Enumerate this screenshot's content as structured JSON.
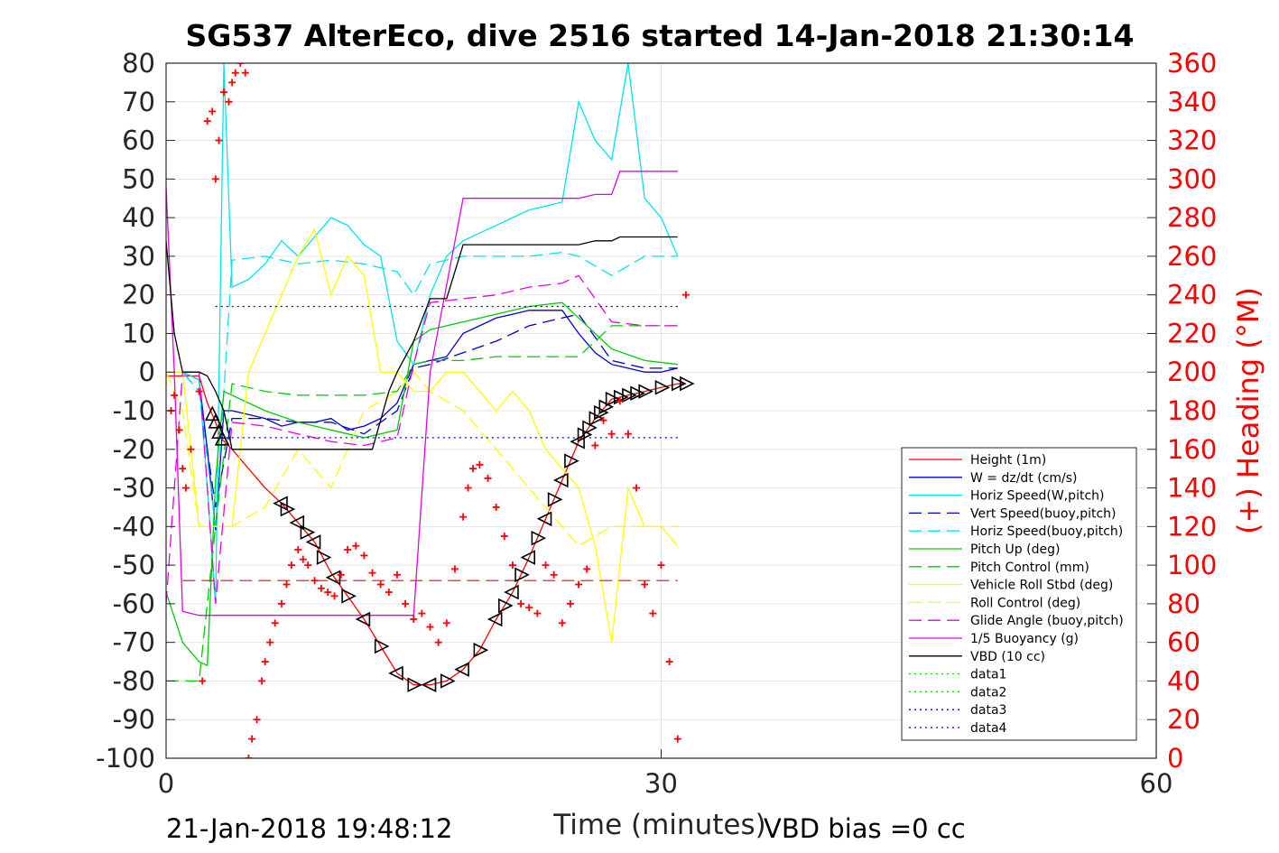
{
  "chart_data": {
    "type": "line",
    "title": "SG537 AlterEco, dive 2516 started 14-Jan-2018 21:30:14",
    "xlabel": "Time (minutes)",
    "ylabel_left": "",
    "ylabel_right": "(+) Heading (°M)",
    "xlim": [
      0,
      60
    ],
    "ylim_left": [
      -100,
      80
    ],
    "ylim_right": [
      0,
      360
    ],
    "x_ticks": [
      "0",
      "30",
      "60"
    ],
    "y_ticks_left": [
      "80",
      "70",
      "60",
      "50",
      "40",
      "30",
      "20",
      "10",
      "0",
      "-10",
      "-20",
      "-30",
      "-40",
      "-50",
      "-60",
      "-70",
      "-80",
      "-90",
      "-100"
    ],
    "y_ticks_right": [
      "360",
      "340",
      "320",
      "300",
      "280",
      "260",
      "240",
      "220",
      "200",
      "180",
      "160",
      "140",
      "120",
      "100",
      "80",
      "60",
      "40",
      "20",
      "0"
    ],
    "grid": true,
    "legend_position": "lower-right",
    "footer_left": "21-Jan-2018 19:48:12",
    "footer_right": "VBD bias =0 cc",
    "series": [
      {
        "name": "Height (1m)",
        "color": "#ff0000",
        "style": "solid",
        "x": [
          0,
          1,
          2,
          2.5,
          3,
          3.3,
          4,
          5,
          6,
          7,
          8,
          9,
          10,
          11,
          12,
          13,
          14,
          15,
          16,
          17,
          18,
          19,
          20,
          21,
          22,
          23,
          24,
          25,
          26,
          27,
          28,
          29,
          30,
          31,
          31.5
        ],
        "y": [
          -1,
          -1,
          -1,
          -8,
          -13,
          -17,
          -20,
          -25,
          -30,
          -34,
          -39,
          -44,
          -52,
          -58,
          -64,
          -71,
          -78,
          -81,
          -81,
          -80,
          -77,
          -72,
          -64,
          -57,
          -48,
          -38,
          -28,
          -18,
          -12,
          -7,
          -6,
          -5,
          -4,
          -3,
          -3
        ]
      },
      {
        "name": "W = dz/dt (cm/s)",
        "color": "#0000cc",
        "style": "solid",
        "x": [
          0,
          1,
          2,
          2.5,
          3,
          3.5,
          4,
          5,
          6,
          7,
          8,
          9,
          10,
          11,
          12,
          13,
          14,
          15,
          16,
          17,
          18,
          19,
          20,
          21,
          22,
          23,
          24,
          25,
          26,
          27,
          28,
          29,
          30,
          31
        ],
        "y": [
          0,
          0,
          -2,
          -20,
          -41,
          -10,
          -10,
          -11,
          -12,
          -14,
          -13,
          -13,
          -12,
          -15,
          -14,
          -12,
          -8,
          2,
          3,
          4,
          10,
          12,
          14,
          15,
          16,
          16,
          16,
          10,
          5,
          2,
          1,
          0,
          0,
          1
        ]
      },
      {
        "name": "Horiz Speed(W,pitch)",
        "color": "#00e5e5",
        "style": "solid",
        "x": [
          0,
          1,
          2,
          2.5,
          3,
          3.5,
          4,
          5,
          6,
          7,
          8,
          9,
          10,
          11,
          12,
          13,
          14,
          15,
          16,
          17,
          18,
          19,
          20,
          21,
          22,
          23,
          24,
          25,
          26,
          27,
          28,
          29,
          30,
          31
        ],
        "y": [
          0,
          0,
          -2,
          -30,
          -60,
          80,
          22,
          24,
          28,
          34,
          30,
          35,
          40,
          38,
          33,
          30,
          8,
          2,
          20,
          30,
          34,
          36,
          38,
          40,
          42,
          43,
          44,
          70,
          60,
          55,
          80,
          45,
          40,
          30
        ]
      },
      {
        "name": "Vert Speed(buoy,pitch)",
        "color": "#0000cc",
        "style": "dashed",
        "x": [
          0,
          1,
          2,
          3,
          4,
          6,
          8,
          10,
          12,
          14,
          15,
          16,
          18,
          20,
          22,
          24,
          25,
          27,
          29,
          31
        ],
        "y": [
          0,
          0,
          -5,
          -35,
          -12,
          -12,
          -13,
          -13,
          -16,
          -10,
          1,
          2,
          5,
          8,
          12,
          14,
          15,
          3,
          1,
          1
        ]
      },
      {
        "name": "Horiz Speed(buoy,pitch)",
        "color": "#00e5e5",
        "style": "dashed",
        "x": [
          0,
          1,
          2,
          3,
          4,
          6,
          8,
          10,
          12,
          14,
          15,
          16,
          18,
          20,
          22,
          24,
          25,
          27,
          29,
          31
        ],
        "y": [
          0,
          0,
          -5,
          -40,
          29,
          30,
          28,
          29,
          28,
          26,
          20,
          28,
          30,
          30,
          30,
          31,
          30,
          25,
          30,
          30
        ]
      },
      {
        "name": "Pitch Up (deg)",
        "color": "#00cc00",
        "style": "solid",
        "x": [
          0,
          1,
          2,
          2.5,
          3,
          3.5,
          4,
          6,
          8,
          10,
          12,
          14,
          15,
          16,
          18,
          20,
          22,
          24,
          25,
          27,
          29,
          31
        ],
        "y": [
          -57,
          -70,
          -75,
          -76,
          -28,
          -5,
          -6,
          -10,
          -13,
          -15,
          -17,
          -15,
          8,
          11,
          13,
          15,
          17,
          18,
          14,
          6,
          3,
          2
        ]
      },
      {
        "name": "Pitch Control (mm)",
        "color": "#00cc00",
        "style": "dashed",
        "x": [
          0,
          1,
          2,
          3,
          4,
          6,
          8,
          10,
          12,
          14,
          15,
          16,
          18,
          20,
          22,
          24,
          25,
          27,
          29,
          31
        ],
        "y": [
          -80,
          -80,
          -80,
          -40,
          -3,
          -5,
          -6,
          -6,
          -6,
          -5,
          2,
          3,
          3,
          4,
          4,
          4,
          4,
          12,
          12,
          12
        ]
      },
      {
        "name": "Vehicle Roll Stbd (deg)",
        "color": "#ffff00",
        "style": "solid",
        "x": [
          0,
          1,
          2,
          3,
          4,
          5,
          6,
          7,
          8,
          9,
          10,
          11,
          12,
          13,
          14,
          15,
          16,
          17,
          18,
          19,
          20,
          21,
          22,
          23,
          24,
          25,
          26,
          27,
          28,
          29,
          30,
          31
        ],
        "y": [
          0,
          0,
          -40,
          -40,
          -40,
          0,
          10,
          20,
          30,
          37,
          20,
          30,
          25,
          0,
          0,
          -5,
          -5,
          0,
          0,
          -5,
          -10,
          -5,
          -10,
          -20,
          -25,
          -30,
          -45,
          -70,
          -30,
          -40,
          -40,
          -45
        ]
      },
      {
        "name": "Roll Control (deg)",
        "color": "#ffff00",
        "style": "dashed",
        "x": [
          0,
          1,
          2,
          3,
          4,
          6,
          8,
          10,
          12,
          14,
          15,
          16,
          18,
          20,
          22,
          24,
          25,
          27,
          29,
          31
        ],
        "y": [
          0,
          -10,
          -40,
          -40,
          -40,
          -35,
          -20,
          -30,
          -10,
          -5,
          0,
          -5,
          -10,
          -20,
          -30,
          -40,
          -45,
          -40,
          -40,
          -40
        ]
      },
      {
        "name": "Glide Angle (buoy,pitch)",
        "color": "#e600e6",
        "style": "dashed",
        "x": [
          0,
          1,
          2,
          3,
          4,
          6,
          8,
          10,
          12,
          14,
          15,
          16,
          18,
          20,
          22,
          24,
          25,
          27,
          29,
          31
        ],
        "y": [
          -60,
          0,
          0,
          -60,
          -13,
          -14,
          -16,
          -18,
          -19,
          -17,
          2,
          18,
          19,
          20,
          22,
          23,
          25,
          13,
          12,
          12
        ]
      },
      {
        "name": "1/5 Buoyancy (g)",
        "color": "#e600e6",
        "style": "solid",
        "x": [
          0,
          0.5,
          1,
          2,
          3,
          3.5,
          13,
          15,
          16,
          18,
          19,
          25,
          26,
          27,
          27.5,
          31
        ],
        "y": [
          48,
          0,
          -62,
          -63,
          -63,
          -63,
          -63,
          -63,
          0,
          45,
          45,
          45,
          46,
          46,
          52,
          52
        ]
      },
      {
        "name": "VBD (10 cc)",
        "color": "#000000",
        "style": "solid",
        "x": [
          0,
          0.5,
          1,
          2,
          2.5,
          3,
          3.5,
          4,
          12.5,
          13.5,
          14,
          15,
          16,
          17,
          18,
          19,
          20,
          25,
          26,
          27,
          27.5,
          31
        ],
        "y": [
          34,
          10,
          0,
          0,
          -1,
          -5,
          -10,
          -20,
          -20,
          -5,
          0,
          8,
          19,
          19,
          33,
          33,
          33,
          33,
          34,
          34,
          35,
          35
        ]
      },
      {
        "name": "data1",
        "color": "#00cc00",
        "style": "dotted",
        "x": [],
        "y": []
      },
      {
        "name": "data2",
        "color": "#00cc00",
        "style": "dotted",
        "x": [],
        "y": []
      },
      {
        "name": "data3",
        "color": "#0000cc",
        "style": "dotted",
        "x": [
          3,
          31
        ],
        "y": [
          17,
          17
        ]
      },
      {
        "name": "data4",
        "color": "#0000cc",
        "style": "dotted",
        "x": [
          3,
          31
        ],
        "y": [
          -17,
          -17
        ]
      }
    ],
    "reference_lines": [
      {
        "color": "#ff0000",
        "style": "dashed",
        "x": [
          1,
          31
        ],
        "y": [
          -54,
          -54
        ]
      }
    ],
    "heading_points": {
      "color": "#ff0000",
      "marker": "+",
      "axis": "right",
      "x": [
        0.3,
        0.5,
        0.8,
        1.0,
        1.2,
        1.5,
        2.0,
        2.2,
        2.5,
        2.8,
        3.0,
        3.2,
        3.5,
        3.8,
        4.0,
        4.2,
        4.5,
        4.8,
        5.0,
        5.2,
        5.5,
        5.8,
        6.0,
        6.3,
        6.6,
        7.0,
        7.3,
        7.6,
        8.0,
        8.3,
        8.6,
        9.0,
        9.4,
        9.8,
        10.2,
        10.6,
        11.0,
        11.5,
        12.0,
        12.5,
        13.0,
        13.5,
        14.0,
        14.5,
        15.0,
        15.5,
        16.0,
        16.5,
        17.0,
        17.5,
        18.0,
        18.3,
        18.6,
        19.0,
        19.5,
        20.0,
        20.5,
        21.0,
        21.5,
        22.0,
        22.5,
        23.0,
        23.5,
        24.0,
        24.5,
        25.0,
        25.5,
        26.0,
        26.5,
        27.0,
        27.5,
        28.0,
        28.5,
        29.0,
        29.5,
        30.0,
        30.5,
        31.0,
        31.5
      ],
      "y": [
        180,
        188,
        170,
        150,
        140,
        160,
        190,
        40,
        330,
        335,
        300,
        320,
        345,
        340,
        350,
        355,
        360,
        355,
        0,
        10,
        20,
        40,
        50,
        60,
        70,
        80,
        90,
        100,
        108,
        103,
        100,
        92,
        88,
        86,
        84,
        95,
        108,
        110,
        105,
        96,
        90,
        86,
        95,
        80,
        72,
        75,
        68,
        60,
        70,
        98,
        125,
        140,
        150,
        152,
        145,
        130,
        115,
        100,
        80,
        78,
        75,
        100,
        95,
        70,
        80,
        90,
        98,
        162,
        175,
        168,
        185,
        168,
        140,
        90,
        75,
        100,
        50,
        10,
        240
      ]
    },
    "depth_markers_x": [
      2.8,
      3.0,
      3.2,
      3.4,
      7.0,
      7.3,
      8.0,
      8.5,
      9.0,
      9.5,
      10.2,
      11.0,
      12.0,
      13.0,
      14.0,
      15.0,
      16.0,
      17.0,
      18.0,
      19.0,
      20.0,
      20.5,
      21.0,
      21.5,
      22.0,
      22.5,
      23.0,
      23.5,
      24.0,
      24.5,
      25.0,
      25.3,
      25.6,
      26.0,
      26.3,
      26.6,
      27.0,
      27.5,
      28.0,
      28.5,
      29.0,
      30.0,
      31.0,
      31.5
    ]
  }
}
